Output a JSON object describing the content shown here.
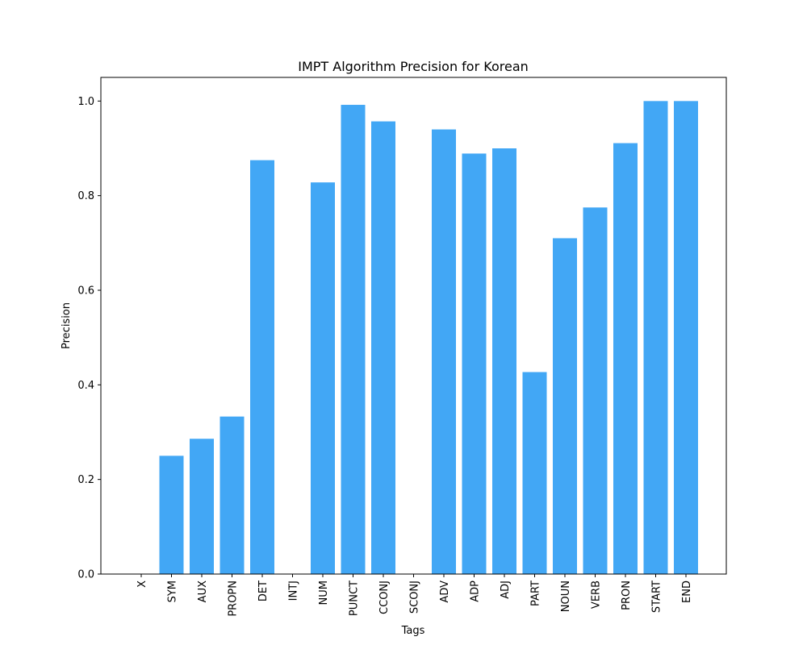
{
  "chart_data": {
    "type": "bar",
    "title": "IMPT Algorithm Precision for Korean",
    "xlabel": "Tags",
    "ylabel": "Precision",
    "categories": [
      "X",
      "SYM",
      "AUX",
      "PROPN",
      "DET",
      "INTJ",
      "NUM",
      "PUNCT",
      "CCONJ",
      "SCONJ",
      "ADV",
      "ADP",
      "ADJ",
      "PART",
      "NOUN",
      "VERB",
      "PRON",
      "START",
      "END"
    ],
    "values": [
      0.0,
      0.25,
      0.286,
      0.333,
      0.875,
      0.0,
      0.828,
      0.992,
      0.957,
      0.0,
      0.94,
      0.889,
      0.9,
      0.427,
      0.71,
      0.775,
      0.911,
      1.0,
      1.0
    ],
    "ylim": [
      0,
      1.05
    ],
    "yticks": [
      "0.0",
      "0.2",
      "0.4",
      "0.6",
      "0.8",
      "1.0"
    ],
    "grid": false,
    "bar_color": "#42a7f5"
  }
}
